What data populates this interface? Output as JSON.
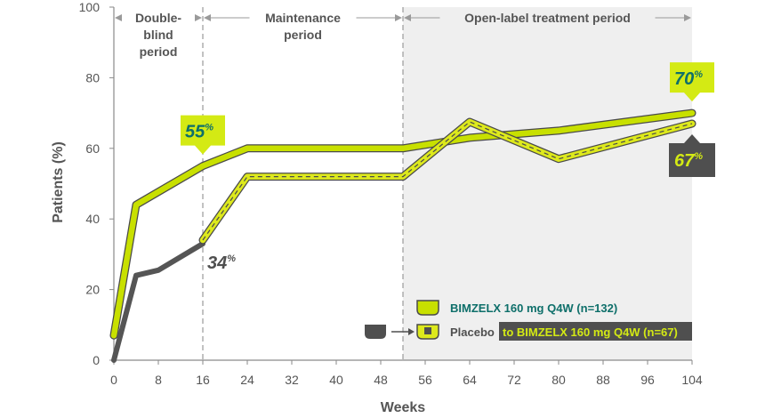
{
  "chart_data": {
    "type": "line",
    "xlabel": "Weeks",
    "ylabel": "Patients (%)",
    "xlim": [
      0,
      104
    ],
    "ylim": [
      0,
      100
    ],
    "xticks": [
      0,
      8,
      16,
      24,
      32,
      40,
      48,
      56,
      64,
      72,
      80,
      88,
      96,
      104
    ],
    "yticks": [
      0,
      20,
      40,
      60,
      80,
      100
    ],
    "grid": false,
    "periods": [
      {
        "label_lines": [
          "Double-",
          "blind",
          "period"
        ],
        "x_start": 0,
        "x_end": 16
      },
      {
        "label_lines": [
          "Maintenance",
          "period"
        ],
        "x_start": 16,
        "x_end": 52
      },
      {
        "label_lines": [
          "Open-label treatment period"
        ],
        "x_start": 52,
        "x_end": 104,
        "shaded": true
      }
    ],
    "series": [
      {
        "name": "BIMZELX 160 mg Q4W (n=132)",
        "color": "#c8e000",
        "points": [
          [
            0,
            7
          ],
          [
            4,
            44
          ],
          [
            16,
            55
          ],
          [
            24,
            60
          ],
          [
            52,
            60
          ],
          [
            64,
            63
          ],
          [
            80,
            65
          ],
          [
            104,
            70
          ]
        ]
      },
      {
        "name": "Placebo",
        "name_suffix": "to BIMZELX 160 mg Q4W (n=67)",
        "segments": [
          {
            "color": "#555555",
            "points": [
              [
                0,
                0
              ],
              [
                4,
                24
              ],
              [
                8,
                25.5
              ],
              [
                16,
                33
              ]
            ]
          },
          {
            "color": "#dde91c",
            "dashed": true,
            "points": [
              [
                16,
                34
              ],
              [
                24,
                52
              ],
              [
                52,
                52
              ],
              [
                64,
                67.5
              ],
              [
                80,
                57
              ],
              [
                104,
                67
              ]
            ]
          }
        ]
      }
    ],
    "annotations": [
      {
        "text": "55",
        "unit": "%",
        "x": 16,
        "y": 55,
        "style": "lime-callout-above"
      },
      {
        "text": "34",
        "unit": "%",
        "x": 16,
        "y": 33,
        "style": "plain-label"
      },
      {
        "text": "70",
        "unit": "%",
        "x": 104,
        "y": 70,
        "style": "lime-callout-above"
      },
      {
        "text": "67",
        "unit": "%",
        "x": 104,
        "y": 67,
        "style": "gray-callout-below"
      }
    ]
  }
}
